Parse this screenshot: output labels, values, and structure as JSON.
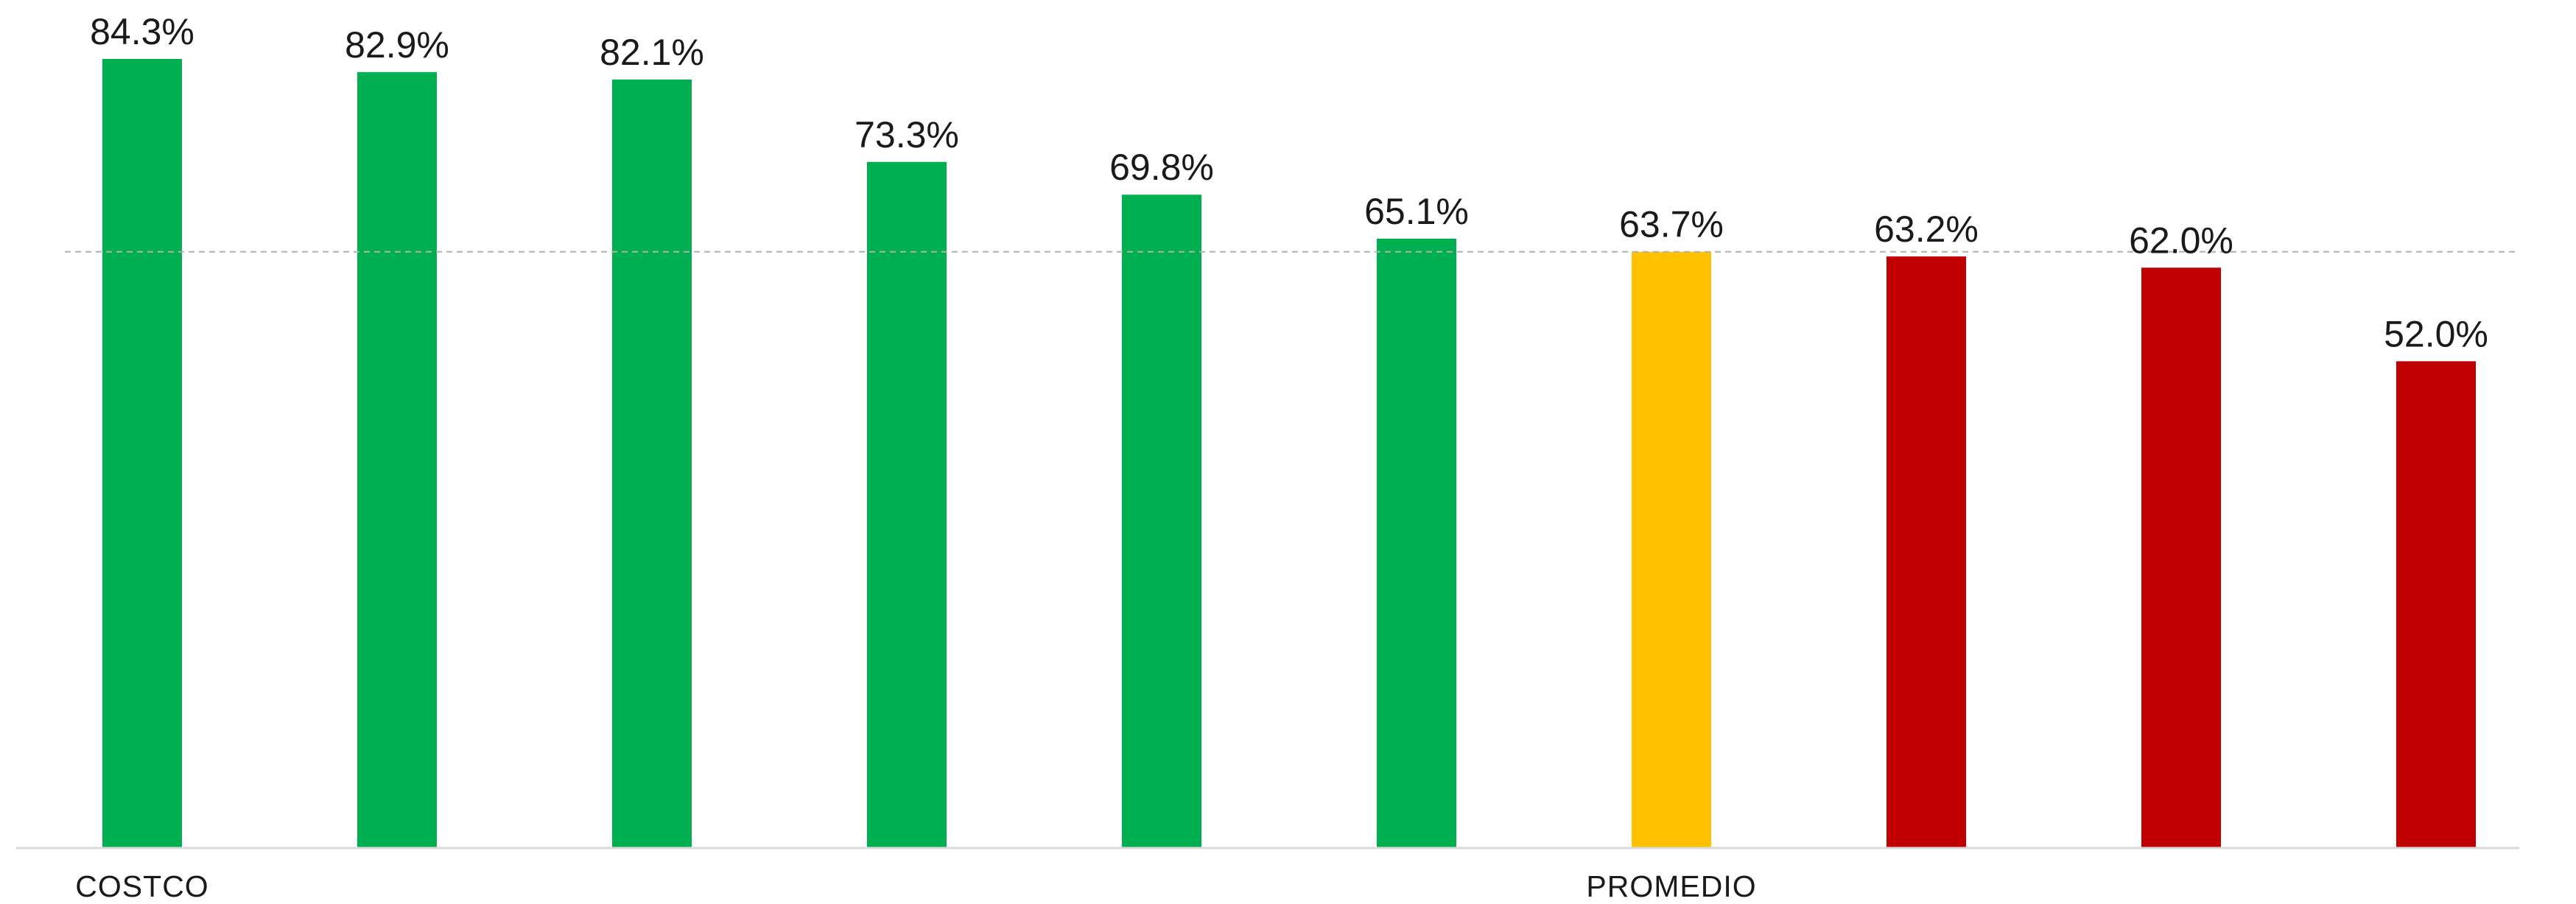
{
  "chart_data": {
    "type": "bar",
    "categories": [
      "COSTCO",
      "",
      "",
      "",
      "",
      "",
      "PROMEDIO",
      "",
      "",
      ""
    ],
    "values": [
      84.3,
      82.9,
      82.1,
      73.3,
      69.8,
      65.1,
      63.7,
      63.2,
      62.0,
      52.0
    ],
    "value_labels": [
      "84.3%",
      "82.9%",
      "82.1%",
      "73.3%",
      "69.8%",
      "65.1%",
      "63.7%",
      "63.2%",
      "62.0%",
      "52.0%"
    ],
    "bar_colors": [
      "#00b050",
      "#00b050",
      "#00b050",
      "#00b050",
      "#00b050",
      "#00b050",
      "#ffc000",
      "#c00000",
      "#c00000",
      "#c00000"
    ],
    "reference_line": {
      "value": 63.7,
      "style": "dashed",
      "color": "#b0b0b0"
    },
    "title": "",
    "xlabel": "",
    "ylabel": "",
    "ylim": [
      0,
      84.3
    ],
    "grid": false,
    "legend": "none",
    "colors": {
      "above_average": "#00b050",
      "average": "#ffc000",
      "below_average": "#c00000",
      "text": "#1a1a1a",
      "axis": "#d9d9d9"
    }
  }
}
